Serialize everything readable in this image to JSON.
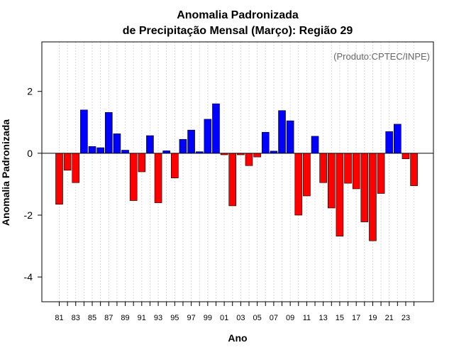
{
  "chart_data": {
    "type": "bar",
    "title_line1": "Anomalia Padronizada",
    "title_line2": "de Precipitação Mensal (Março): Região 29",
    "xlabel": "Ano",
    "ylabel": "Anomalia Padronizada",
    "credit": "(Produto:CPTEC/INPE)",
    "ylim": [
      -4.8,
      3.6
    ],
    "yticks": [
      -4,
      -2,
      0,
      2
    ],
    "ytick_labels": [
      "-4",
      "-2",
      "0",
      "2"
    ],
    "years": [
      "81",
      "82",
      "83",
      "84",
      "85",
      "86",
      "87",
      "88",
      "89",
      "90",
      "91",
      "92",
      "93",
      "94",
      "95",
      "96",
      "97",
      "98",
      "99",
      "00",
      "01",
      "02",
      "03",
      "04",
      "05",
      "06",
      "07",
      "08",
      "09",
      "10",
      "11",
      "12",
      "13",
      "14",
      "15",
      "16",
      "17",
      "18",
      "19",
      "20",
      "21",
      "22",
      "23",
      "24"
    ],
    "xtick_labels": [
      "81",
      "83",
      "85",
      "87",
      "89",
      "91",
      "93",
      "95",
      "97",
      "99",
      "01",
      "03",
      "05",
      "07",
      "09",
      "11",
      "13",
      "15",
      "17",
      "19",
      "21",
      "23"
    ],
    "values": [
      -1.65,
      -0.55,
      -0.95,
      1.4,
      0.22,
      0.18,
      1.32,
      0.63,
      0.1,
      -1.53,
      -0.6,
      0.57,
      -1.6,
      0.08,
      -0.8,
      0.45,
      0.75,
      0.05,
      1.1,
      1.6,
      -0.05,
      -1.7,
      -0.05,
      -0.4,
      -0.12,
      0.68,
      0.07,
      1.38,
      1.05,
      -2.0,
      -1.38,
      0.55,
      -0.95,
      -1.77,
      -2.68,
      -0.97,
      -1.15,
      -2.22,
      -2.83,
      -1.3,
      0.7,
      0.94,
      -0.18,
      -1.05
    ],
    "positive_color": "#0000ff",
    "negative_color": "#ff0000"
  }
}
